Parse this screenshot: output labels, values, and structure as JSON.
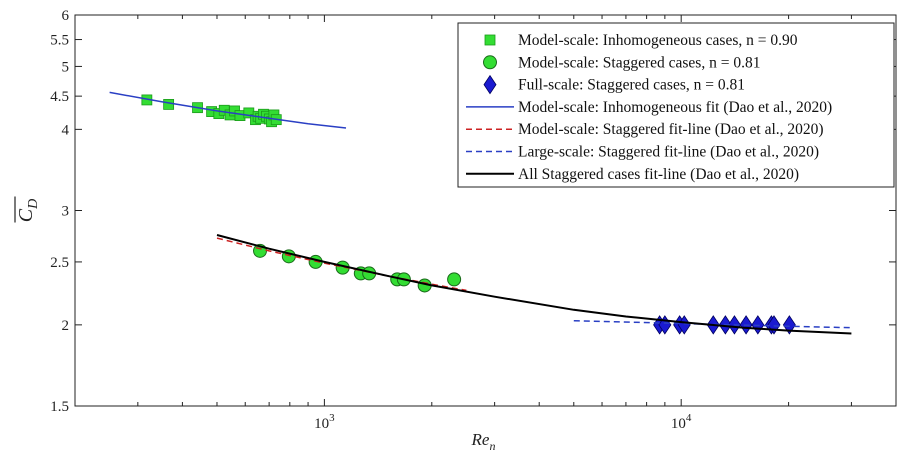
{
  "chart_data": {
    "type": "scatter",
    "x_scale": "log",
    "y_scale": "log",
    "xlim": [
      200,
      40000
    ],
    "ylim": [
      1.5,
      6
    ],
    "xlabel_base": "Re",
    "xlabel_sub": "n",
    "ylabel_base": "C",
    "ylabel_sub": "D",
    "x_ticks": [
      {
        "value": 1000,
        "base": "10",
        "exp": "3"
      },
      {
        "value": 10000,
        "base": "10",
        "exp": "4"
      }
    ],
    "y_ticks": [
      {
        "value": 1.5,
        "label": "1.5"
      },
      {
        "value": 2,
        "label": "2"
      },
      {
        "value": 2.5,
        "label": "2.5"
      },
      {
        "value": 3,
        "label": "3"
      },
      {
        "value": 4,
        "label": "4"
      },
      {
        "value": 4.5,
        "label": "4.5"
      },
      {
        "value": 5,
        "label": "5"
      },
      {
        "value": 5.5,
        "label": "5.5"
      },
      {
        "value": 6,
        "label": "6"
      }
    ],
    "grid": false,
    "legend_position": "top-right",
    "series": [
      {
        "name": "Model-scale: Inhomogeneous cases, n = 0.90",
        "kind": "points",
        "marker": "square",
        "color": "#33dd33",
        "x": [
          318,
          366,
          441,
          483,
          506,
          524,
          544,
          560,
          580,
          614,
          641,
          652,
          663,
          675,
          688,
          701,
          711,
          722,
          733
        ],
        "y": [
          4.44,
          4.37,
          4.32,
          4.26,
          4.23,
          4.28,
          4.21,
          4.27,
          4.2,
          4.24,
          4.14,
          4.19,
          4.16,
          4.22,
          4.19,
          4.15,
          4.11,
          4.21,
          4.14
        ]
      },
      {
        "name": "Model-scale: Staggered cases, n = 0.81",
        "kind": "points",
        "marker": "circle",
        "color": "#33dd33",
        "x": [
          660,
          795,
          945,
          1125,
          1265,
          1335,
          1600,
          1670,
          1910,
          2310
        ],
        "y": [
          2.6,
          2.55,
          2.5,
          2.45,
          2.4,
          2.4,
          2.35,
          2.35,
          2.3,
          2.35
        ]
      },
      {
        "name": "Full-scale: Staggered cases, n = 0.81",
        "kind": "points",
        "marker": "diamond",
        "color": "#1a1ad0",
        "x": [
          8700,
          9000,
          9900,
          10200,
          12300,
          13300,
          14100,
          15200,
          16400,
          17900,
          18200,
          20100
        ],
        "y": [
          2.0,
          2.0,
          2.0,
          2.0,
          2.0,
          2.0,
          2.0,
          2.0,
          2.0,
          2.0,
          2.0,
          2.0
        ]
      },
      {
        "name": "Model-scale: Inhomogeneous fit (Dao et al., 2020)",
        "kind": "line",
        "dash": "solid",
        "color": "#2a3fc4",
        "x": [
          250,
          350,
          500,
          700,
          900,
          1150
        ],
        "y": [
          4.56,
          4.41,
          4.27,
          4.16,
          4.08,
          4.02
        ]
      },
      {
        "name": "Model-scale: Staggered fit-line (Dao et al., 2020)",
        "kind": "line",
        "dash": "dashed",
        "color": "#cc2222",
        "x": [
          500,
          700,
          1000,
          1500,
          2000,
          2500
        ],
        "y": [
          2.72,
          2.6,
          2.49,
          2.38,
          2.31,
          2.26
        ]
      },
      {
        "name": "Large-scale: Staggered fit-line (Dao et al., 2020)",
        "kind": "line",
        "dash": "dashed",
        "color": "#2a3fc4",
        "x": [
          5000,
          10000,
          20000,
          30000
        ],
        "y": [
          2.03,
          2.01,
          1.99,
          1.98
        ]
      },
      {
        "name": "All Staggered cases fit-line (Dao et al., 2020)",
        "kind": "line",
        "dash": "solid",
        "color": "#000000",
        "x": [
          500,
          700,
          1000,
          1500,
          2000,
          3000,
          5000,
          7000,
          10000,
          15000,
          20000,
          30000
        ],
        "y": [
          2.75,
          2.62,
          2.5,
          2.38,
          2.3,
          2.21,
          2.11,
          2.06,
          2.02,
          1.98,
          1.96,
          1.94
        ]
      }
    ]
  }
}
